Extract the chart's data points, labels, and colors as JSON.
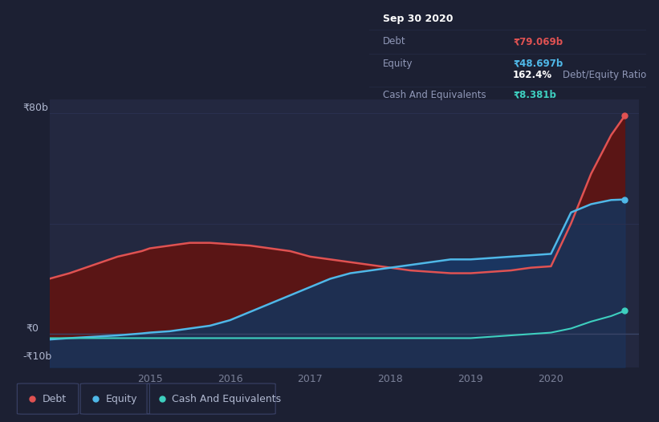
{
  "background_color": "#1c2033",
  "plot_bg_color": "#232840",
  "ylabel_80b": "₹80b",
  "ylabel_0": "₹0",
  "ylabel_neg10b": "-₹10b",
  "x_labels": [
    "2015",
    "2016",
    "2017",
    "2018",
    "2019",
    "2020"
  ],
  "legend_items": [
    {
      "label": "Debt",
      "color": "#e05252"
    },
    {
      "label": "Equity",
      "color": "#4fb8e8"
    },
    {
      "label": "Cash And Equivalents",
      "color": "#3ecfbf"
    }
  ],
  "tooltip": {
    "date": "Sep 30 2020",
    "debt_label": "Debt",
    "debt_value": "₹79.069b",
    "equity_label": "Equity",
    "equity_value": "₹48.697b",
    "ratio_value": "162.4%",
    "ratio_label": "Debt/Equity Ratio",
    "cash_label": "Cash And Equivalents",
    "cash_value": "₹8.381b"
  },
  "debt_color": "#e05252",
  "equity_color": "#4fb8e8",
  "cash_color": "#3ecfbf",
  "debt_fill_color": "#5a1515",
  "equity_fill_color": "#1a3560",
  "grid_color": "#2a3050",
  "tick_color": "#7a8098",
  "text_color": "#b0b8d0",
  "tooltip_bg": "#0a0c18",
  "tooltip_border": "#2a3050",
  "years": [
    2013.75,
    2014.0,
    2014.3,
    2014.6,
    2014.9,
    2015.0,
    2015.25,
    2015.5,
    2015.75,
    2016.0,
    2016.25,
    2016.5,
    2016.75,
    2017.0,
    2017.25,
    2017.5,
    2017.75,
    2018.0,
    2018.25,
    2018.5,
    2018.75,
    2019.0,
    2019.25,
    2019.5,
    2019.75,
    2020.0,
    2020.25,
    2020.5,
    2020.75,
    2020.92
  ],
  "debt": [
    20,
    22,
    25,
    28,
    30,
    31,
    32,
    33,
    33,
    32.5,
    32,
    31,
    30,
    28,
    27,
    26,
    25,
    24,
    23,
    22.5,
    22,
    22,
    22.5,
    23,
    24,
    24.5,
    40,
    58,
    72,
    79
  ],
  "equity": [
    -2,
    -1.5,
    -1,
    -0.5,
    0.2,
    0.5,
    1,
    2,
    3,
    5,
    8,
    11,
    14,
    17,
    20,
    22,
    23,
    24,
    25,
    26,
    27,
    27,
    27.5,
    28,
    28.5,
    29,
    44,
    47,
    48.5,
    48.7
  ],
  "cash": [
    -1.5,
    -1.5,
    -1.5,
    -1.5,
    -1.5,
    -1.5,
    -1.5,
    -1.5,
    -1.5,
    -1.5,
    -1.5,
    -1.5,
    -1.5,
    -1.5,
    -1.5,
    -1.5,
    -1.5,
    -1.5,
    -1.5,
    -1.5,
    -1.5,
    -1.5,
    -1.0,
    -0.5,
    0,
    0.5,
    2.0,
    4.5,
    6.5,
    8.4
  ]
}
